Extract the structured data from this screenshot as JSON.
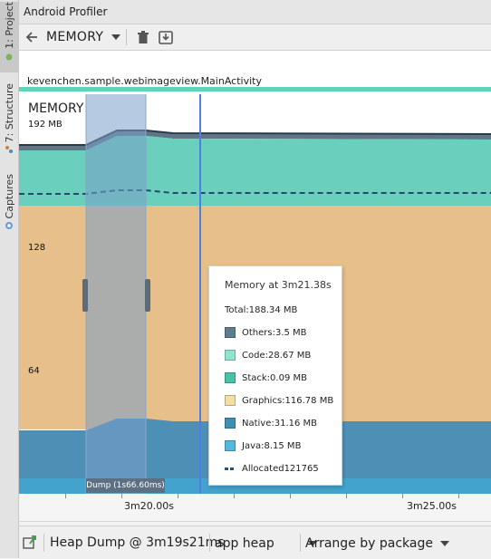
{
  "side_tabs": [
    {
      "label": "1: Project"
    },
    {
      "label": "7: Structure"
    },
    {
      "label": "Captures"
    }
  ],
  "window": {
    "title": "Android Profiler"
  },
  "toolbar": {
    "profiler_select": "MEMORY"
  },
  "activity": {
    "label": "kevenchen.sample.webimageview.MainActivity"
  },
  "chart": {
    "title": "MEMORY",
    "y_labels": {
      "top": "192 MB",
      "mid": "128",
      "low": "64"
    },
    "time_labels": {
      "t1": "3m20.00s",
      "t2": "3m25.00s"
    },
    "dump_label": "Dump (1s66.60ms)"
  },
  "tooltip": {
    "title": "Memory at 3m21.38s",
    "total": "Total:188.34 MB",
    "rows": [
      {
        "label": "Others:3.5 MB",
        "color": "#607d8b"
      },
      {
        "label": "Code:28.67 MB",
        "color": "#8fe3d0"
      },
      {
        "label": "Stack:0.09 MB",
        "color": "#48c2a8"
      },
      {
        "label": "Graphics:116.78 MB",
        "color": "#f3dfa4"
      },
      {
        "label": "Native:31.16 MB",
        "color": "#3d8fb6"
      },
      {
        "label": "Java:8.15 MB",
        "color": "#52b8e0"
      }
    ],
    "allocated": "Allocated121765"
  },
  "bottom": {
    "heap_dump_label": "Heap Dump @ 3m19s21ms",
    "heap_select": "app heap",
    "arrange_select": "Arrange by package"
  },
  "colors": {
    "others": "#617788",
    "code": "#6acfbd",
    "graphics": "#e6bf8b",
    "native": "#4e8fb5",
    "java": "#43a3cc",
    "selection": "#7a9ec8",
    "cursor": "#4e7fe6",
    "allocated": "#27476b"
  }
}
